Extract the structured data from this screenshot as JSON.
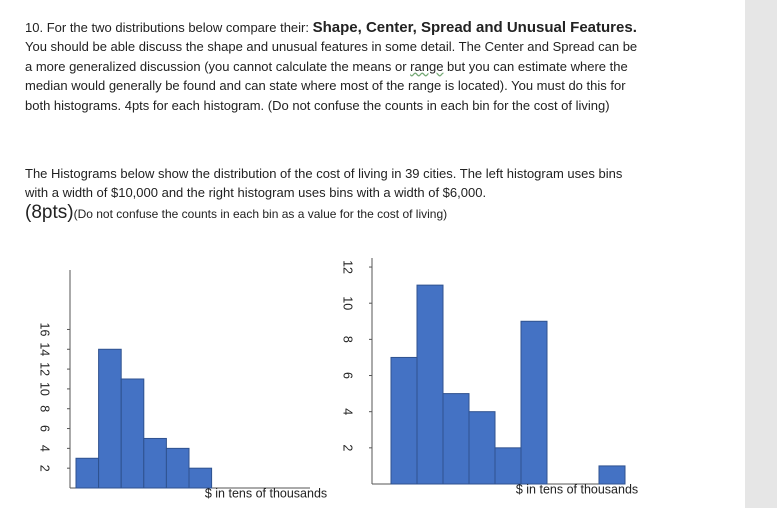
{
  "question": {
    "number": "10.",
    "lead": "For the two distributions below compare their: ",
    "bold": "Shape, Center, Spread and Unusual Features.",
    "text_a": " You should be able discuss the shape and unusual features in some detail. The Center and Spread can be a more generalized discussion (you cannot calculate the means or ",
    "underlined": "range",
    "text_b": " but you can estimate where the median would generally be found and can state where most of the range is located). You must do this for both histograms. 4pts for each histogram. (Do not confuse the counts in each bin for the cost of living)"
  },
  "intro": {
    "text": "The Histograms below show the distribution of the cost of living in 39 cities. The left histogram uses bins with a width of $10,000 and the right histogram uses bins with a width of $6,000.",
    "points": "(8pts)",
    "note": "(Do not confuse the counts in each bin as a value for the cost of living)"
  },
  "chart_data": [
    {
      "type": "histogram",
      "xlabel": "$ in tens of thousands",
      "values": [
        3,
        14,
        11,
        5,
        4,
        2
      ],
      "color": "#4472c4",
      "ylim": [
        0,
        22
      ],
      "yticks": [
        2,
        4,
        6,
        8,
        10,
        12,
        14,
        16
      ]
    },
    {
      "type": "histogram",
      "xlabel": "$ in tens of thousands",
      "values": [
        7,
        11,
        5,
        4,
        2,
        9,
        0,
        0,
        1
      ],
      "color": "#4472c4",
      "ylim": [
        0,
        12.5
      ],
      "yticks": [
        2,
        4,
        6,
        8,
        10,
        12
      ]
    }
  ]
}
